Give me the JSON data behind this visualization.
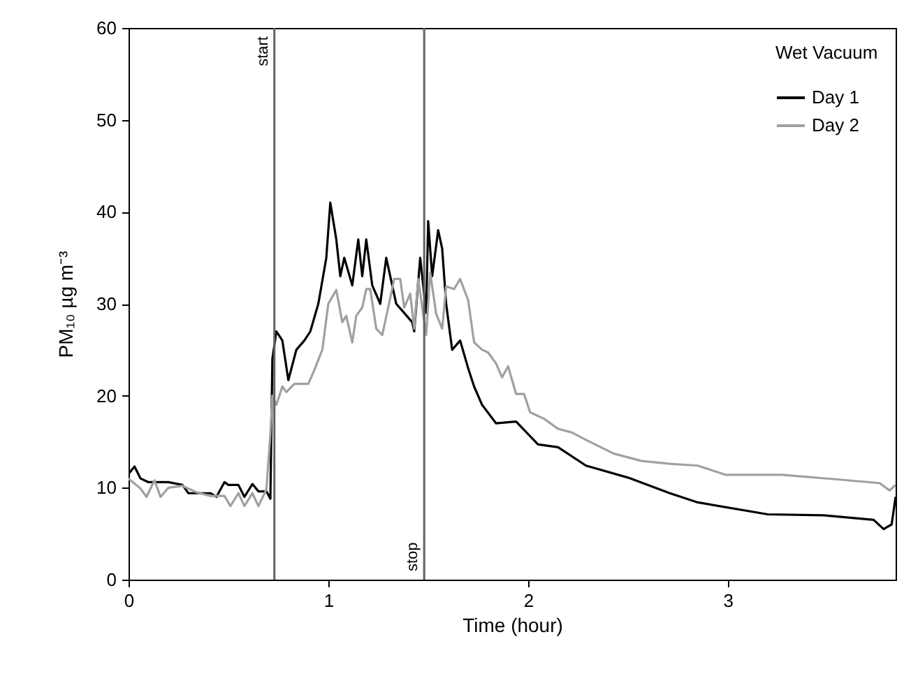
{
  "chart_data": {
    "type": "line",
    "xlabel": "Time (hour)",
    "ylabel": "PM₁₀ µg m⁻³",
    "legend_title": "Wet Vacuum",
    "legend": "top right",
    "xlim": [
      0,
      3.84
    ],
    "ylim": [
      0,
      60
    ],
    "xticks": [
      0,
      1,
      2,
      3
    ],
    "yticks": [
      0,
      10,
      20,
      30,
      40,
      50,
      60
    ],
    "line_style": "solid",
    "series": [
      {
        "name": "Day 1",
        "color": "#000000",
        "x": [
          0,
          0.03,
          0.06,
          0.1,
          0.2,
          0.27,
          0.3,
          0.41,
          0.44,
          0.48,
          0.5,
          0.55,
          0.58,
          0.62,
          0.65,
          0.69,
          0.71,
          0.72,
          0.74,
          0.77,
          0.8,
          0.84,
          0.88,
          0.91,
          0.95,
          0.99,
          1.01,
          1.04,
          1.06,
          1.08,
          1.12,
          1.15,
          1.17,
          1.19,
          1.22,
          1.26,
          1.29,
          1.34,
          1.38,
          1.42,
          1.43,
          1.46,
          1.49,
          1.5,
          1.52,
          1.55,
          1.57,
          1.59,
          1.62,
          1.66,
          1.7,
          1.73,
          1.77,
          1.84,
          1.94,
          2.05,
          2.15,
          2.29,
          2.5,
          2.71,
          2.85,
          3.2,
          3.48,
          3.73,
          3.78,
          3.82,
          3.84
        ],
        "values": [
          11.5,
          12.3,
          11,
          10.6,
          10.6,
          10.3,
          9.4,
          9.4,
          9,
          10.6,
          10.3,
          10.3,
          9,
          10.4,
          9.6,
          9.6,
          8.8,
          24,
          27,
          26,
          21.7,
          25,
          26,
          27,
          30,
          35,
          41,
          37,
          33,
          35,
          32,
          37,
          33,
          37,
          32,
          30,
          35,
          30,
          29,
          28,
          27,
          35,
          29,
          39,
          33,
          38,
          36,
          30,
          25,
          26,
          23,
          21,
          19,
          17,
          17.2,
          14.7,
          14.4,
          12.4,
          11.1,
          9.4,
          8.4,
          7.1,
          7,
          6.5,
          5.5,
          6,
          9
        ]
      },
      {
        "name": "Day 2",
        "color": "#a0a0a0",
        "x": [
          0,
          0.06,
          0.09,
          0.13,
          0.16,
          0.2,
          0.27,
          0.34,
          0.41,
          0.48,
          0.51,
          0.55,
          0.58,
          0.62,
          0.65,
          0.69,
          0.71,
          0.72,
          0.74,
          0.77,
          0.79,
          0.83,
          0.9,
          0.93,
          0.97,
          1.0,
          1.04,
          1.07,
          1.09,
          1.12,
          1.14,
          1.17,
          1.19,
          1.21,
          1.24,
          1.27,
          1.3,
          1.33,
          1.36,
          1.38,
          1.41,
          1.43,
          1.45,
          1.49,
          1.51,
          1.54,
          1.57,
          1.59,
          1.63,
          1.66,
          1.7,
          1.73,
          1.77,
          1.8,
          1.84,
          1.87,
          1.9,
          1.94,
          1.98,
          2.01,
          2.08,
          2.15,
          2.22,
          2.29,
          2.43,
          2.57,
          2.71,
          2.85,
          2.99,
          3.27,
          3.55,
          3.76,
          3.81,
          3.84
        ],
        "values": [
          11,
          9.9,
          9,
          10.8,
          9,
          10,
          10.2,
          9.5,
          9.1,
          9.1,
          8,
          9.4,
          8,
          9.4,
          8,
          9.8,
          15.8,
          20,
          19,
          21,
          20.4,
          21.3,
          21.3,
          22.8,
          25,
          30,
          31.5,
          28,
          28.7,
          25.8,
          28.7,
          29.6,
          31.6,
          31.6,
          27.3,
          26.6,
          29.6,
          32.7,
          32.7,
          29.6,
          31.1,
          27.3,
          32.7,
          26.6,
          33.4,
          28.9,
          27.3,
          31.9,
          31.6,
          32.7,
          30.4,
          25.8,
          25,
          24.7,
          23.5,
          22,
          23.2,
          20.2,
          20.2,
          18.2,
          17.5,
          16.4,
          16,
          15.2,
          13.7,
          12.9,
          12.6,
          12.4,
          11.4,
          11.4,
          10.9,
          10.5,
          9.7,
          10.3
        ]
      }
    ],
    "ref_lines": [
      {
        "axis": "x",
        "value": 0.73,
        "label": "start",
        "color": "#606060"
      },
      {
        "axis": "x",
        "value": 1.48,
        "label": "stop",
        "color": "#606060"
      }
    ]
  }
}
